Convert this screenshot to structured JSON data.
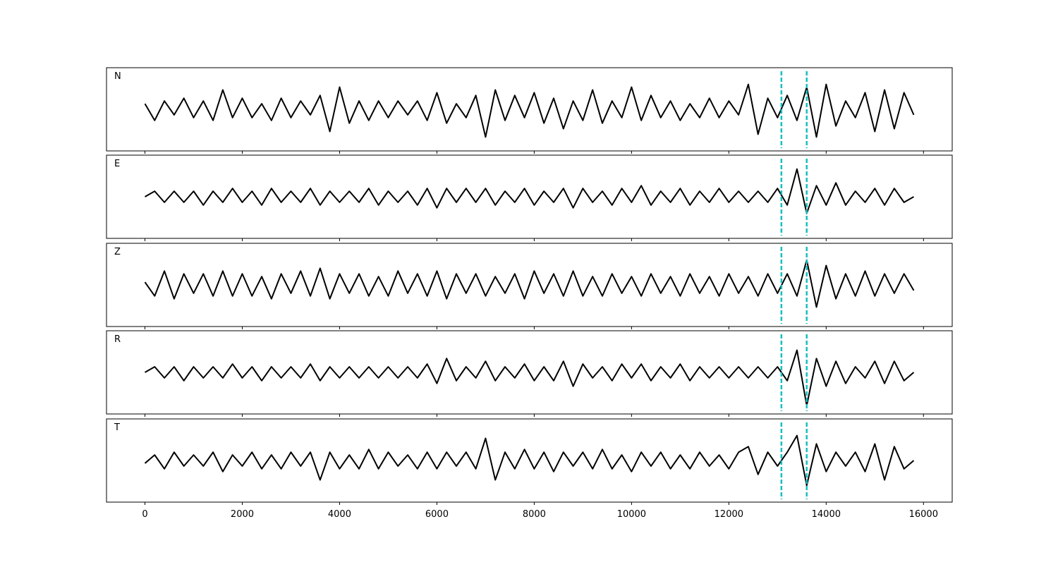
{
  "chart_data": {
    "type": "line",
    "x": [
      0,
      200,
      400,
      600,
      800,
      1000,
      1200,
      1400,
      1600,
      1800,
      2000,
      2200,
      2400,
      2600,
      2800,
      3000,
      3200,
      3400,
      3600,
      3800,
      4000,
      4200,
      4400,
      4600,
      4800,
      5000,
      5200,
      5400,
      5600,
      5800,
      6000,
      6200,
      6400,
      6600,
      6800,
      7000,
      7200,
      7400,
      7600,
      7800,
      8000,
      8200,
      8400,
      8600,
      8800,
      9000,
      9200,
      9400,
      9600,
      9800,
      10000,
      10200,
      10400,
      10600,
      10800,
      11000,
      11200,
      11400,
      11600,
      11800,
      12000,
      12200,
      12400,
      12600,
      12800,
      13000,
      13200,
      13400,
      13600,
      13800,
      14000,
      14200,
      14400,
      14600,
      14800,
      15000,
      15200,
      15400,
      15600,
      15800
    ],
    "series": [
      {
        "name": "N",
        "color": "#000000",
        "values": [
          0.2,
          -0.4,
          0.3,
          -0.2,
          0.4,
          -0.3,
          0.3,
          -0.4,
          0.7,
          -0.3,
          0.4,
          -0.3,
          0.2,
          -0.4,
          0.4,
          -0.3,
          0.3,
          -0.2,
          0.5,
          -0.8,
          0.8,
          -0.5,
          0.3,
          -0.4,
          0.3,
          -0.3,
          0.3,
          -0.2,
          0.3,
          -0.4,
          0.6,
          -0.5,
          0.2,
          -0.3,
          0.5,
          -1.0,
          0.7,
          -0.4,
          0.5,
          -0.3,
          0.6,
          -0.5,
          0.4,
          -0.7,
          0.3,
          -0.4,
          0.7,
          -0.5,
          0.3,
          -0.3,
          0.8,
          -0.4,
          0.5,
          -0.3,
          0.3,
          -0.4,
          0.2,
          -0.3,
          0.4,
          -0.3,
          0.3,
          -0.2,
          0.9,
          -0.9,
          0.4,
          -0.3,
          0.5,
          -0.4,
          0.8,
          -1.0,
          0.9,
          -0.6,
          0.3,
          -0.3,
          0.6,
          -0.8,
          0.7,
          -0.7,
          0.6,
          -0.2
        ]
      },
      {
        "name": "E",
        "color": "#000000",
        "values": [
          0.0,
          0.2,
          -0.2,
          0.2,
          -0.2,
          0.2,
          -0.3,
          0.2,
          -0.2,
          0.3,
          -0.2,
          0.2,
          -0.3,
          0.3,
          -0.2,
          0.2,
          -0.2,
          0.3,
          -0.3,
          0.2,
          -0.2,
          0.2,
          -0.2,
          0.3,
          -0.3,
          0.2,
          -0.2,
          0.2,
          -0.3,
          0.3,
          -0.4,
          0.3,
          -0.2,
          0.3,
          -0.2,
          0.3,
          -0.3,
          0.2,
          -0.2,
          0.3,
          -0.3,
          0.2,
          -0.2,
          0.3,
          -0.4,
          0.3,
          -0.2,
          0.2,
          -0.3,
          0.3,
          -0.2,
          0.4,
          -0.3,
          0.2,
          -0.2,
          0.3,
          -0.3,
          0.2,
          -0.2,
          0.3,
          -0.2,
          0.2,
          -0.2,
          0.2,
          -0.2,
          0.3,
          -0.3,
          1.0,
          -0.6,
          0.4,
          -0.3,
          0.5,
          -0.3,
          0.2,
          -0.2,
          0.3,
          -0.3,
          0.3,
          -0.2,
          0.0
        ]
      },
      {
        "name": "Z",
        "color": "#000000",
        "values": [
          0.1,
          -0.4,
          0.5,
          -0.5,
          0.4,
          -0.3,
          0.4,
          -0.4,
          0.5,
          -0.4,
          0.4,
          -0.4,
          0.3,
          -0.5,
          0.4,
          -0.3,
          0.5,
          -0.4,
          0.6,
          -0.5,
          0.4,
          -0.3,
          0.4,
          -0.4,
          0.3,
          -0.4,
          0.5,
          -0.3,
          0.4,
          -0.4,
          0.5,
          -0.5,
          0.4,
          -0.3,
          0.4,
          -0.4,
          0.3,
          -0.3,
          0.4,
          -0.5,
          0.5,
          -0.3,
          0.4,
          -0.4,
          0.5,
          -0.4,
          0.3,
          -0.4,
          0.4,
          -0.3,
          0.3,
          -0.4,
          0.4,
          -0.3,
          0.3,
          -0.4,
          0.4,
          -0.3,
          0.3,
          -0.4,
          0.4,
          -0.3,
          0.3,
          -0.4,
          0.4,
          -0.3,
          0.4,
          -0.4,
          0.9,
          -0.8,
          0.7,
          -0.5,
          0.4,
          -0.4,
          0.5,
          -0.4,
          0.4,
          -0.3,
          0.4,
          -0.2
        ]
      },
      {
        "name": "R",
        "color": "#000000",
        "values": [
          0.0,
          0.2,
          -0.2,
          0.2,
          -0.3,
          0.2,
          -0.2,
          0.2,
          -0.2,
          0.3,
          -0.2,
          0.2,
          -0.3,
          0.2,
          -0.2,
          0.2,
          -0.2,
          0.3,
          -0.3,
          0.2,
          -0.2,
          0.2,
          -0.2,
          0.2,
          -0.2,
          0.2,
          -0.2,
          0.2,
          -0.2,
          0.3,
          -0.4,
          0.5,
          -0.3,
          0.2,
          -0.2,
          0.4,
          -0.3,
          0.2,
          -0.2,
          0.3,
          -0.3,
          0.2,
          -0.3,
          0.4,
          -0.5,
          0.3,
          -0.2,
          0.2,
          -0.3,
          0.3,
          -0.2,
          0.3,
          -0.3,
          0.2,
          -0.2,
          0.3,
          -0.3,
          0.2,
          -0.2,
          0.2,
          -0.2,
          0.2,
          -0.2,
          0.2,
          -0.2,
          0.2,
          -0.3,
          0.8,
          -1.2,
          0.5,
          -0.5,
          0.4,
          -0.4,
          0.2,
          -0.2,
          0.4,
          -0.4,
          0.4,
          -0.3,
          0.0
        ]
      },
      {
        "name": "T",
        "color": "#000000",
        "values": [
          -0.1,
          0.2,
          -0.3,
          0.3,
          -0.2,
          0.2,
          -0.2,
          0.3,
          -0.4,
          0.2,
          -0.2,
          0.3,
          -0.3,
          0.2,
          -0.3,
          0.3,
          -0.2,
          0.3,
          -0.7,
          0.3,
          -0.3,
          0.2,
          -0.3,
          0.4,
          -0.3,
          0.3,
          -0.2,
          0.2,
          -0.3,
          0.3,
          -0.3,
          0.3,
          -0.2,
          0.3,
          -0.3,
          0.8,
          -0.7,
          0.3,
          -0.3,
          0.4,
          -0.3,
          0.3,
          -0.4,
          0.3,
          -0.2,
          0.3,
          -0.3,
          0.4,
          -0.3,
          0.2,
          -0.4,
          0.3,
          -0.2,
          0.3,
          -0.3,
          0.2,
          -0.3,
          0.3,
          -0.2,
          0.2,
          -0.3,
          0.3,
          0.5,
          -0.5,
          0.3,
          -0.2,
          0.3,
          0.9,
          -0.9,
          0.6,
          -0.4,
          0.3,
          -0.2,
          0.3,
          -0.4,
          0.6,
          -0.7,
          0.5,
          -0.3,
          0.0
        ]
      }
    ],
    "xlim": [
      -790,
      16590
    ],
    "xticks": [
      0,
      2000,
      4000,
      6000,
      8000,
      10000,
      12000,
      14000,
      16000
    ],
    "ylim": [
      -1.5,
      1.5
    ],
    "vlines": [
      13080,
      13600
    ],
    "vline_color": "#17bfbf"
  }
}
